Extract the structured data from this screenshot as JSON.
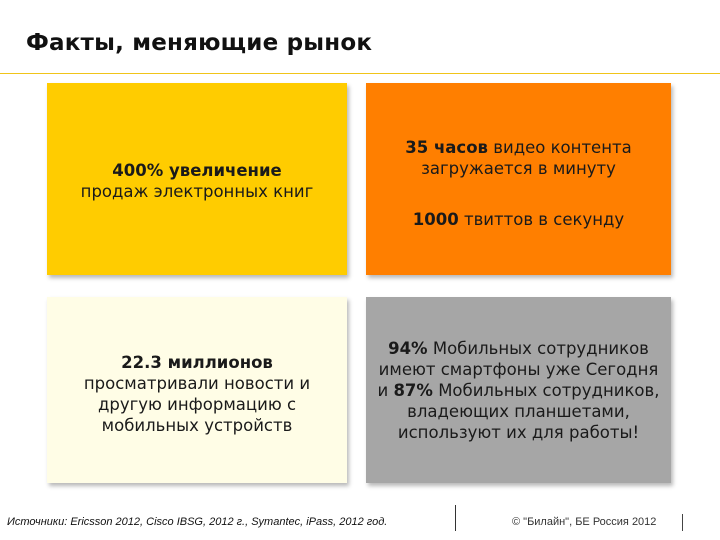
{
  "header": {
    "title": "Факты, меняющие рынок"
  },
  "tiles": [
    {
      "bold": "400% увеличение",
      "rest": "продаж электронных книг"
    },
    {
      "a_bold": "35 часов",
      "a_rest": " видео контента загружается в минуту",
      "b_bold": "1000",
      "b_rest": " твиттов в секунду"
    },
    {
      "bold": "22.3 миллионов",
      "rest": "просматривали новости и другую информацию с мобильных устройств"
    },
    {
      "p1_bold": "94%",
      "p1_rest": " Мобильных сотрудников имеют смартфоны уже Сегодня и ",
      "p2_bold": "87%",
      "p2_rest": " Мобильных сотрудников, владеющих планшетами, используют их для работы!"
    }
  ],
  "footer": {
    "sources": "Источники: Ericsson 2012, Cisco IBSG, 2012 г., Symantec, iPass, 2012 год.",
    "copyright": "© \"Билайн\", БЕ Россия 2012"
  },
  "colors": {
    "tile_yellow": "#ffcc00",
    "tile_orange": "#ff7f00",
    "tile_cream": "#fffde6",
    "tile_gray": "#a6a6a6",
    "rule_yellow": "#f0c419"
  }
}
